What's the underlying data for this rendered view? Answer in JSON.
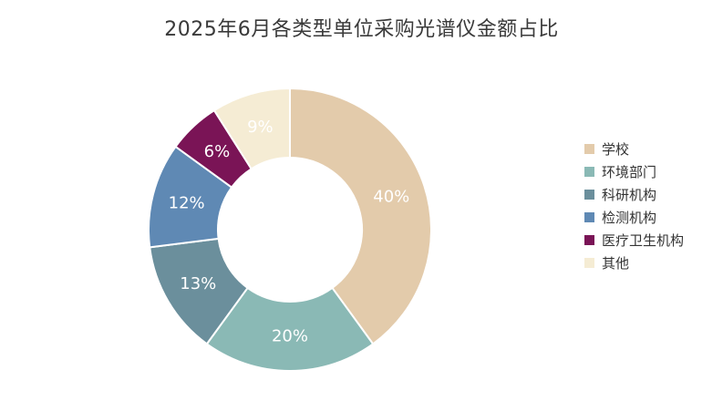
{
  "chart_data": {
    "type": "pie",
    "title": "2025年6月各类型单位采购光谱仪金额占比",
    "categories": [
      "学校",
      "环境部门",
      "科研机构",
      "检测机构",
      "医疗卫生机构",
      "其他"
    ],
    "values": [
      40,
      20,
      13,
      12,
      6,
      9
    ],
    "labels": [
      "40%",
      "20%",
      "13%",
      "12%",
      "6%",
      "9%"
    ],
    "colors": [
      "#e3cbab",
      "#8ab9b5",
      "#6b8f9c",
      "#5f89b4",
      "#7a1456",
      "#f5ecd4"
    ],
    "donut": true,
    "legend": "right"
  }
}
